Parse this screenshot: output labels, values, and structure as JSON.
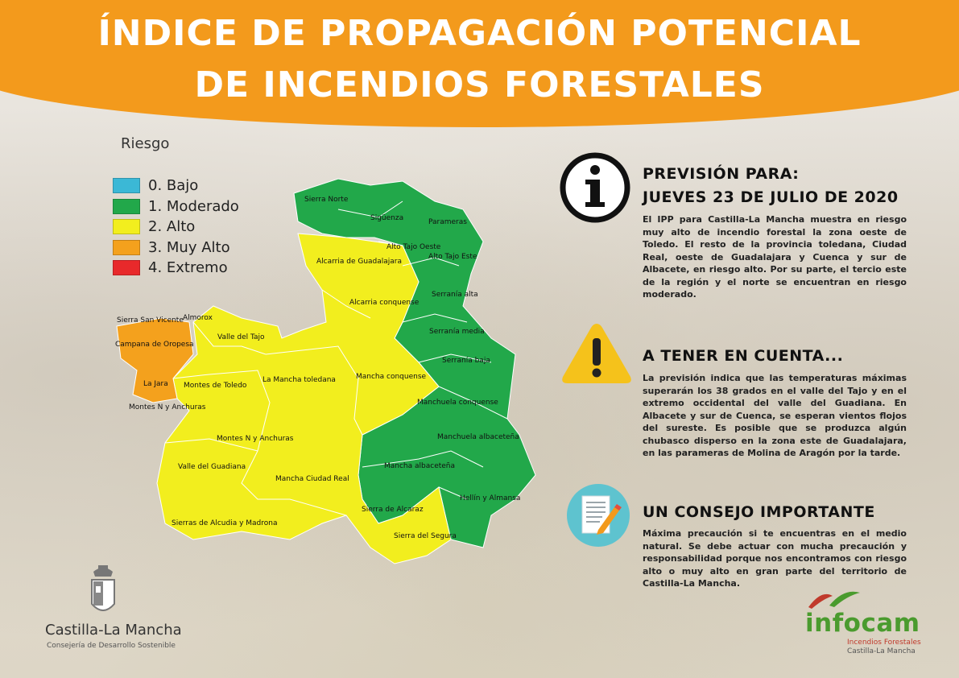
{
  "header": {
    "title_line1": "ÍNDICE DE PROPAGACIÓN POTENCIAL",
    "title_line2": "DE INCENDIOS FORESTALES"
  },
  "legend": {
    "title": "Riesgo",
    "items": [
      {
        "label": "0. Bajo",
        "color": "#3bb8d6"
      },
      {
        "label": "1. Moderado",
        "color": "#22a84a"
      },
      {
        "label": "2. Alto",
        "color": "#f2ee1e"
      },
      {
        "label": "3. Muy Alto",
        "color": "#f4a11d"
      },
      {
        "label": "4. Extremo",
        "color": "#e8292b"
      }
    ]
  },
  "map": {
    "labels": {
      "sierra_norte": "Sierra Norte",
      "siguenza": "Sigüenza",
      "parameras": "Parameras",
      "alto_tajo_oeste": "Alto Tajo Oeste",
      "alto_tajo_este": "Alto Tajo Este",
      "alcarria_guadalajara": "Alcarria de Guadalajara",
      "serrania_alta": "Serranía alta",
      "alcarria_conquense": "Alcarria conquense",
      "serrania_media": "Serranía media",
      "sierra_san_vicente": "Sierra San Vicente",
      "almorox": "Almorox",
      "valle_tajo": "Valle del Tajo",
      "campana_oropesa": "Campana de Oropesa",
      "serrania_baja": "Serranía baja",
      "la_mancha_toledana": "La Mancha toledana",
      "mancha_conquense": "Mancha conquense",
      "montes_toledo": "Montes de Toledo",
      "la_jara": "La Jara",
      "manchuela_conquense": "Manchuela conquense",
      "montes_n_anchuras_1": "Montes N y Anchuras",
      "manchuela_albacetena": "Manchuela albaceteña",
      "montes_n_anchuras_2": "Montes N y Anchuras",
      "mancha_albacetena": "Mancha albaceteña",
      "valle_guadiana": "Valle del Guadiana",
      "mancha_ciudad_real": "Mancha Ciudad Real",
      "hellin_almansa": "Hellín y Almansa",
      "sierra_alcaraz": "Sierra de Alcaraz",
      "sierras_alcudia": "Sierras de Alcudia y Madrona",
      "sierra_segura": "Sierra del Segura"
    }
  },
  "forecast": {
    "title1": "PREVISIÓN PARA:",
    "title2": "JUEVES 23  DE JULIO DE 2020",
    "text": "El IPP para Castilla-La Mancha muestra en riesgo muy alto de incendio forestal la zona oeste de Toledo. El resto de la provincia toledana, Ciudad Real, oeste de Guadalajara y Cuenca y sur de Albacete, en riesgo alto. Por su parte, el tercio este de la región y el norte se encuentran en riesgo moderado."
  },
  "notice": {
    "title": "A TENER EN CUENTA...",
    "text": "La previsión indica que las temperaturas máximas superarán los 38 grados en el valle del Tajo y en el extremo occidental del valle del Guadiana. En Albacete y sur de Cuenca, se esperan vientos flojos del sureste. Es posible que se produzca algún chubasco disperso en la zona este de Guadalajara, en las parameras de Molina de Aragón por la tarde."
  },
  "advice": {
    "title": "UN CONSEJO IMPORTANTE",
    "text": "Máxima precaución si te encuentras en el medio natural. Se debe actuar con mucha precaución y responsabilidad porque nos encontramos con riesgo alto o muy alto en gran parte del territorio de Castilla-La Mancha."
  },
  "footer": {
    "clm_name": "Castilla-La Mancha",
    "clm_sub": "Consejería de Desarrollo Sostenible",
    "infocam": "infocam",
    "infocam_sub1": "Incendios Forestales",
    "infocam_sub2": "Castilla-La Mancha"
  },
  "icons": {
    "forecast": "info-icon",
    "notice": "warning-icon",
    "advice": "document-pencil-icon"
  }
}
